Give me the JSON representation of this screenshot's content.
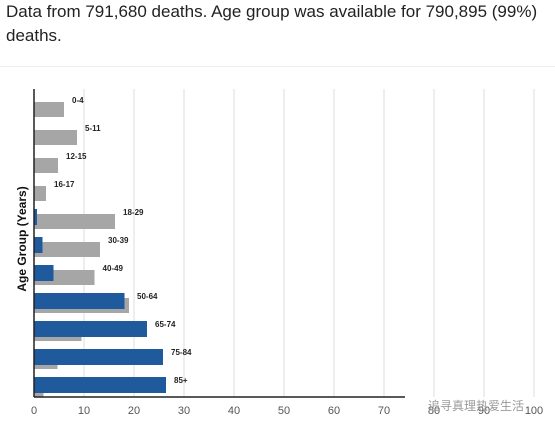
{
  "caption": "Data from 791,680 deaths. Age group was available for 790,895 (99%) deaths.",
  "watermark": "追寻真理热爱生活",
  "chart_data": {
    "type": "bar",
    "orientation": "horizontal",
    "title": "",
    "xlabel": "",
    "ylabel": "Age Group (Years)",
    "xlim": [
      0,
      100
    ],
    "xticks": [
      "0",
      "10",
      "20",
      "30",
      "40",
      "50",
      "60",
      "70",
      "80",
      "90",
      "100"
    ],
    "grid": true,
    "legend": "none",
    "categories": [
      "0-4",
      "5-11",
      "12-15",
      "16-17",
      "18-29",
      "30-39",
      "40-49",
      "50-64",
      "65-74",
      "75-84",
      "85+"
    ],
    "series": [
      {
        "color": "#a6a6a6",
        "values": [
          6,
          8.6,
          4.8,
          2.4,
          16.2,
          13.2,
          12.1,
          19,
          9.5,
          4.7,
          1.9
        ]
      },
      {
        "color": "#1f5a9c",
        "values": [
          0,
          0,
          0,
          0,
          0.6,
          1.7,
          3.9,
          18.1,
          22.6,
          25.8,
          26.4
        ]
      }
    ]
  }
}
